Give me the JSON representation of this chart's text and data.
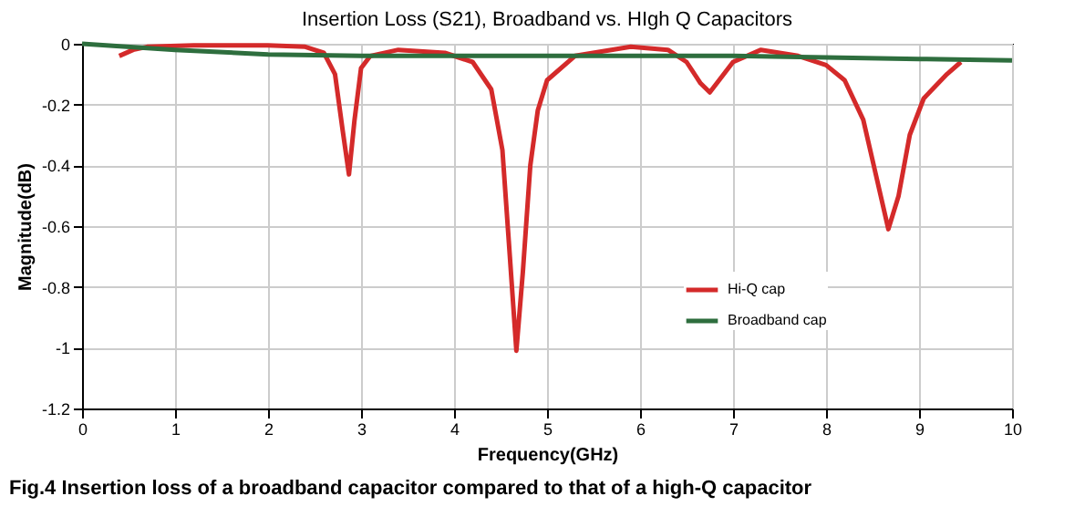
{
  "chart_data": {
    "type": "line",
    "title": "Insertion Loss (S21), Broadband vs. HIgh Q Capacitors",
    "xlabel": "Frequency(GHz)",
    "ylabel": "Magnitude(dB)",
    "annotations": [
      "Fig.4 Insertion loss of a broadband capacitor compared to that of a high-Q capacitor"
    ],
    "xlim": [
      0,
      10
    ],
    "xticks": [
      0,
      1,
      2,
      3,
      4,
      5,
      6,
      7,
      8,
      9,
      10
    ],
    "ylim": [
      -1.2,
      0
    ],
    "yticks": [
      -1.2,
      -1,
      -0.8,
      -0.6,
      -0.4,
      -0.2,
      0
    ],
    "grid": true,
    "legend": "right",
    "line_style": "solid",
    "marker": "none",
    "series": [
      {
        "name": "Hi-Q cap",
        "color": "#d42a2a",
        "x": [
          0.4,
          0.55,
          0.7,
          1.2,
          2.0,
          2.4,
          2.6,
          2.72,
          2.8,
          2.87,
          2.93,
          3.0,
          3.1,
          3.4,
          3.9,
          4.2,
          4.4,
          4.52,
          4.6,
          4.67,
          4.74,
          4.82,
          4.9,
          5.0,
          5.3,
          5.9,
          6.3,
          6.5,
          6.65,
          6.75,
          6.85,
          7.0,
          7.3,
          7.7,
          8.0,
          8.2,
          8.4,
          8.55,
          8.67,
          8.78,
          8.9,
          9.05,
          9.3,
          9.45
        ],
        "values": [
          -0.04,
          -0.02,
          -0.01,
          -0.005,
          -0.005,
          -0.01,
          -0.03,
          -0.1,
          -0.28,
          -0.43,
          -0.25,
          -0.08,
          -0.04,
          -0.02,
          -0.03,
          -0.06,
          -0.15,
          -0.35,
          -0.7,
          -1.01,
          -0.75,
          -0.4,
          -0.22,
          -0.12,
          -0.04,
          -0.01,
          -0.02,
          -0.06,
          -0.13,
          -0.16,
          -0.12,
          -0.06,
          -0.02,
          -0.04,
          -0.07,
          -0.12,
          -0.25,
          -0.45,
          -0.61,
          -0.5,
          -0.3,
          -0.18,
          -0.1,
          -0.06
        ]
      },
      {
        "name": "Broadband cap",
        "color": "#2e6e3e",
        "x": [
          0,
          1,
          2,
          3,
          4,
          5,
          6,
          7,
          8,
          9,
          10
        ],
        "values": [
          0,
          -0.02,
          -0.035,
          -0.04,
          -0.04,
          -0.04,
          -0.04,
          -0.04,
          -0.045,
          -0.05,
          -0.055
        ]
      }
    ]
  }
}
